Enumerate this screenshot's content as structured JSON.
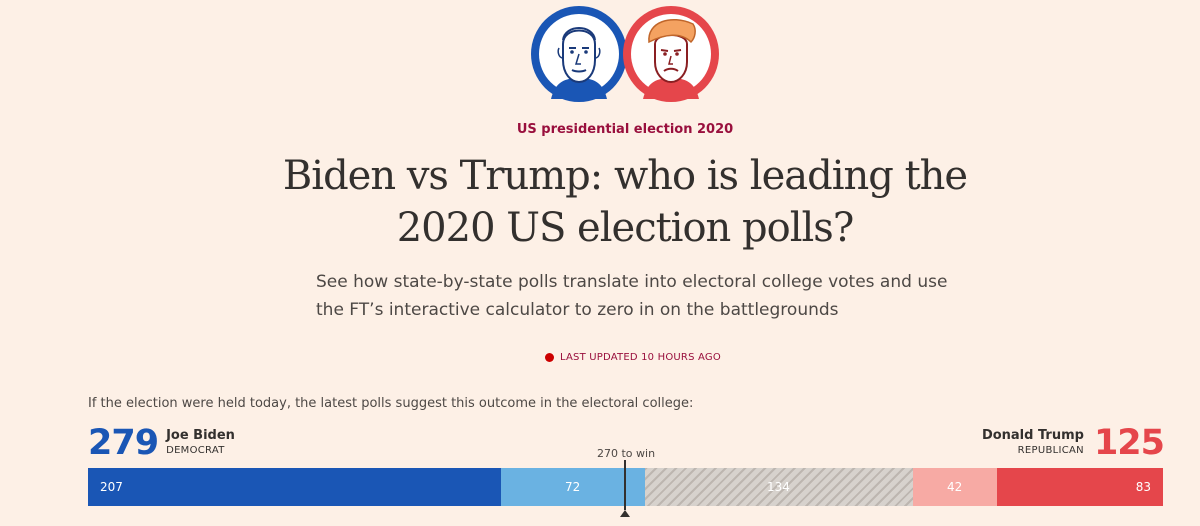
{
  "header": {
    "kicker": "US presidential election 2020",
    "headline_line1": "Biden vs Trump: who is leading the",
    "headline_line2": "2020 US election polls?",
    "standfirst_line1": "See how state-by-state polls translate into electoral college votes and use",
    "standfirst_line2": "the FT’s interactive calculator to zero in on the battlegrounds",
    "last_updated": "LAST UPDATED 10 HOURS AGO"
  },
  "portraits": [
    {
      "name": "biden-portrait",
      "color": "#1a56b5"
    },
    {
      "name": "trump-portrait",
      "color": "#e5464b"
    }
  ],
  "summary": {
    "intro": "If the election were held today, the latest polls suggest this outcome in the electoral college:",
    "to_win": "270 to win",
    "biden": {
      "total": "279",
      "name": "Joe Biden",
      "party": "DEMOCRAT",
      "color": "#1a56b5"
    },
    "trump": {
      "total": "125",
      "name": "Donald Trump",
      "party": "REPUBLICAN",
      "color": "#e5464b"
    },
    "segments": {
      "dem_solid": "207",
      "dem_lean": "72",
      "tossup": "134",
      "rep_lean": "42",
      "rep_solid": "83"
    }
  }
}
